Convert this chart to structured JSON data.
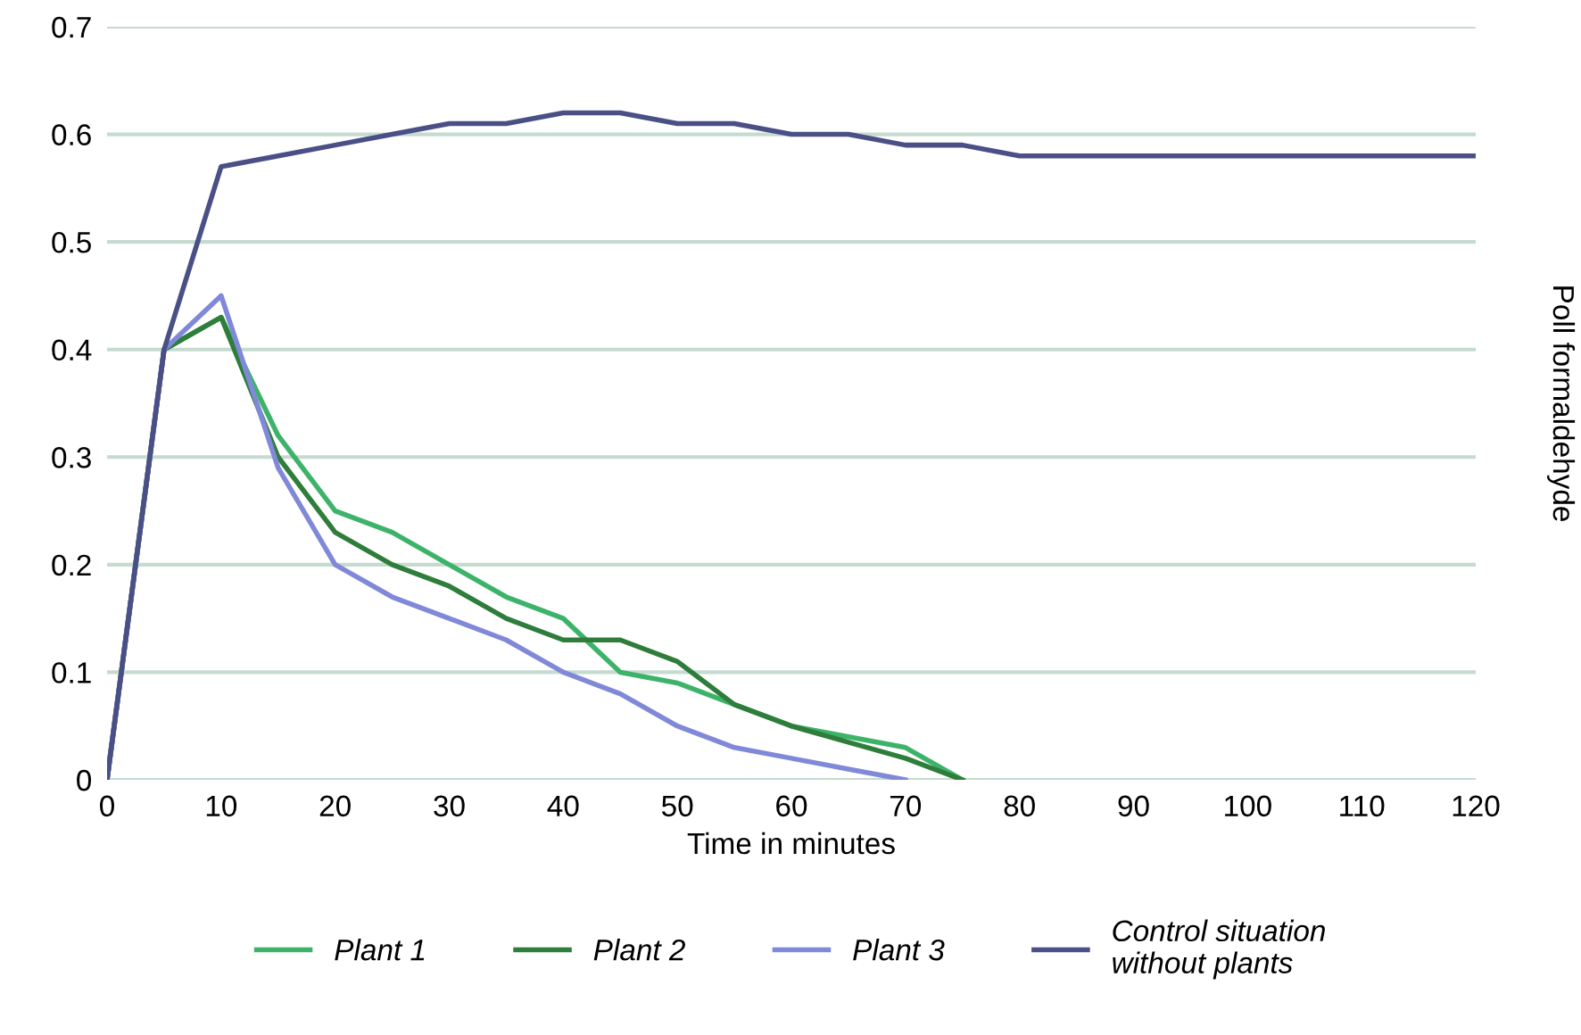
{
  "chart_data": {
    "type": "line",
    "xlabel": "Time in minutes",
    "ylabel": "Poll formaldehyde",
    "xlim": [
      0,
      120
    ],
    "xticks": [
      0,
      10,
      20,
      30,
      40,
      50,
      60,
      70,
      80,
      90,
      100,
      110,
      120
    ],
    "ylim": [
      0,
      0.7
    ],
    "yticks": [
      0,
      0.1,
      0.2,
      0.3,
      0.4,
      0.5,
      0.6,
      0.7
    ],
    "grid": "y",
    "legend": "bottom",
    "marker": "none",
    "line_style": "solid",
    "series": [
      {
        "name": "Plant 1",
        "color": "#3db36a",
        "x": [
          0,
          5,
          10,
          15,
          20,
          25,
          30,
          35,
          40,
          45,
          50,
          55,
          60,
          65,
          70,
          75
        ],
        "values": [
          0,
          0.4,
          0.43,
          0.32,
          0.25,
          0.23,
          0.2,
          0.17,
          0.15,
          0.1,
          0.09,
          0.07,
          0.05,
          0.04,
          0.03,
          0
        ]
      },
      {
        "name": "Plant 2",
        "color": "#2e7d3a",
        "x": [
          0,
          5,
          10,
          15,
          20,
          25,
          30,
          35,
          40,
          45,
          50,
          55,
          60,
          65,
          70,
          75
        ],
        "values": [
          0,
          0.4,
          0.43,
          0.3,
          0.23,
          0.2,
          0.18,
          0.15,
          0.13,
          0.13,
          0.11,
          0.07,
          0.05,
          0.035,
          0.02,
          0
        ]
      },
      {
        "name": "Plant 3",
        "color": "#8088d8",
        "x": [
          0,
          5,
          10,
          15,
          20,
          25,
          30,
          35,
          40,
          45,
          50,
          55,
          60,
          65,
          70
        ],
        "values": [
          0,
          0.4,
          0.45,
          0.29,
          0.2,
          0.17,
          0.15,
          0.13,
          0.1,
          0.08,
          0.05,
          0.03,
          0.02,
          0.01,
          0
        ]
      },
      {
        "name": "Control situation\nwithout plants",
        "color": "#4a4f86",
        "x": [
          0,
          5,
          10,
          15,
          20,
          25,
          30,
          35,
          40,
          45,
          50,
          55,
          60,
          65,
          70,
          75,
          80,
          85,
          90,
          95,
          100,
          105,
          110,
          115,
          120
        ],
        "values": [
          0,
          0.4,
          0.57,
          0.58,
          0.59,
          0.6,
          0.61,
          0.61,
          0.62,
          0.62,
          0.61,
          0.61,
          0.6,
          0.6,
          0.59,
          0.59,
          0.58,
          0.58,
          0.58,
          0.58,
          0.58,
          0.58,
          0.58,
          0.58,
          0.58
        ]
      }
    ]
  }
}
